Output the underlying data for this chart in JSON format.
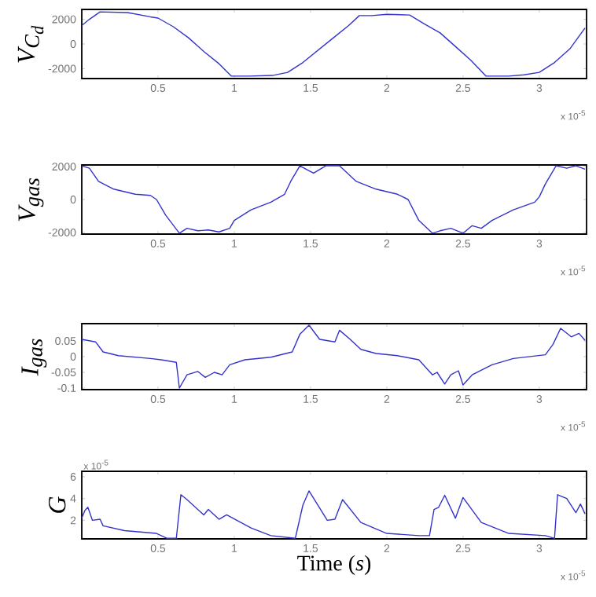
{
  "chart_data": [
    {
      "type": "line",
      "ylabel": "V_{C_d}",
      "color": "#3333cc",
      "xlim": [
        0,
        3.31
      ],
      "xticks": [
        0.5,
        1,
        1.5,
        2,
        2.5,
        3
      ],
      "ylim": [
        -2800,
        2800
      ],
      "yticks": [
        -2000,
        0,
        2000
      ],
      "annotations": [
        "x 10$^{-5}$"
      ],
      "x": [
        0,
        0.05,
        0.12,
        0.3,
        0.45,
        0.5,
        0.6,
        0.7,
        0.8,
        0.9,
        0.98,
        1.1,
        1.25,
        1.35,
        1.45,
        1.55,
        1.65,
        1.75,
        1.82,
        1.9,
        2.0,
        2.15,
        2.25,
        2.35,
        2.45,
        2.55,
        2.65,
        2.8,
        2.9,
        3.0,
        3.1,
        3.2,
        3.3
      ],
      "values": [
        1500,
        2000,
        2600,
        2550,
        2200,
        2100,
        1400,
        500,
        -600,
        -1600,
        -2600,
        -2600,
        -2550,
        -2300,
        -1500,
        -500,
        500,
        1500,
        2300,
        2300,
        2400,
        2350,
        1600,
        900,
        -200,
        -1300,
        -2600,
        -2600,
        -2500,
        -2300,
        -1500,
        -400,
        1300
      ]
    },
    {
      "type": "line",
      "ylabel": "V_{gas}",
      "color": "#3333cc",
      "xlim": [
        0,
        3.31
      ],
      "xticks": [
        0.5,
        1,
        1.5,
        2,
        2.5,
        3
      ],
      "ylim": [
        -2100,
        2100
      ],
      "yticks": [
        -2000,
        0,
        2000
      ],
      "annotations": [
        "x 10$^{-5}$"
      ],
      "x": [
        0,
        0.05,
        0.11,
        0.21,
        0.35,
        0.45,
        0.49,
        0.55,
        0.64,
        0.69,
        0.76,
        0.83,
        0.9,
        0.97,
        1.0,
        1.11,
        1.24,
        1.33,
        1.37,
        1.43,
        1.49,
        1.52,
        1.6,
        1.69,
        1.8,
        1.93,
        2.07,
        2.14,
        2.21,
        2.3,
        2.35,
        2.42,
        2.5,
        2.56,
        2.62,
        2.69,
        2.83,
        2.97,
        3.0,
        3.04,
        3.11,
        3.18,
        3.24,
        3.3
      ],
      "values": [
        2050,
        1900,
        1100,
        630,
        320,
        250,
        0,
        -950,
        -2050,
        -1750,
        -1900,
        -1850,
        -1970,
        -1750,
        -1270,
        -630,
        -160,
        320,
        1100,
        2050,
        1750,
        1600,
        2050,
        2050,
        1100,
        630,
        320,
        0,
        -1270,
        -2050,
        -1900,
        -1750,
        -2050,
        -1590,
        -1750,
        -1270,
        -630,
        -160,
        160,
        950,
        2050,
        1900,
        2050,
        1840
      ]
    },
    {
      "type": "line",
      "ylabel": "I_{gas}",
      "color": "#3333cc",
      "xlim": [
        0,
        3.31
      ],
      "xticks": [
        0.5,
        1,
        1.5,
        2,
        2.5,
        3
      ],
      "ylim": [
        -0.105,
        0.105
      ],
      "yticks": [
        -0.1,
        -0.05,
        0,
        0.05
      ],
      "annotations": [
        "x 10$^{-5}$"
      ],
      "x": [
        0,
        0.09,
        0.14,
        0.24,
        0.45,
        0.52,
        0.62,
        0.64,
        0.69,
        0.76,
        0.81,
        0.87,
        0.92,
        0.97,
        1.07,
        1.24,
        1.38,
        1.43,
        1.49,
        1.56,
        1.66,
        1.69,
        1.76,
        1.83,
        1.93,
        2.07,
        2.21,
        2.3,
        2.33,
        2.38,
        2.42,
        2.47,
        2.5,
        2.56,
        2.69,
        2.83,
        3.04,
        3.09,
        3.14,
        3.21,
        3.26,
        3.3
      ],
      "values": [
        0.055,
        0.047,
        0.015,
        0.003,
        -0.006,
        -0.01,
        -0.018,
        -0.1,
        -0.058,
        -0.047,
        -0.066,
        -0.05,
        -0.058,
        -0.026,
        -0.01,
        -0.002,
        0.015,
        0.071,
        0.1,
        0.055,
        0.047,
        0.084,
        0.055,
        0.023,
        0.01,
        0.003,
        -0.01,
        -0.058,
        -0.05,
        -0.087,
        -0.058,
        -0.045,
        -0.09,
        -0.058,
        -0.026,
        -0.006,
        0.006,
        0.039,
        0.09,
        0.063,
        0.074,
        0.052
      ]
    },
    {
      "type": "line",
      "ylabel": "G",
      "xlabel": "Time (*s*)",
      "color": "#3333cc",
      "xlim": [
        0,
        3.31
      ],
      "xticks": [
        0.5,
        1,
        1.5,
        2,
        2.5,
        3
      ],
      "ylim": [
        0.3,
        6.5
      ],
      "yticks": [
        2,
        4,
        6
      ],
      "annotations": [
        "x 10$^{-5}$",
        "x 10$^{-5}$"
      ],
      "x": [
        0,
        0.02,
        0.04,
        0.07,
        0.12,
        0.14,
        0.28,
        0.49,
        0.56,
        0.62,
        0.65,
        0.69,
        0.8,
        0.83,
        0.9,
        0.95,
        1.11,
        1.24,
        1.4,
        1.45,
        1.49,
        1.61,
        1.66,
        1.71,
        1.83,
        2.0,
        2.21,
        2.28,
        2.31,
        2.34,
        2.38,
        2.45,
        2.5,
        2.62,
        2.8,
        3.04,
        3.1,
        3.12,
        3.18,
        3.24,
        3.27,
        3.3
      ],
      "values": [
        2.2,
        2.9,
        3.2,
        2.0,
        2.1,
        1.5,
        1.06,
        0.8,
        0.35,
        0.35,
        4.35,
        3.9,
        2.5,
        3.0,
        2.1,
        2.5,
        1.3,
        0.6,
        0.35,
        3.4,
        4.7,
        2.0,
        2.1,
        3.9,
        1.8,
        0.8,
        0.6,
        0.6,
        3.0,
        3.2,
        4.3,
        2.2,
        4.1,
        1.8,
        0.8,
        0.6,
        0.35,
        4.35,
        4.0,
        2.7,
        3.5,
        2.6
      ]
    }
  ]
}
